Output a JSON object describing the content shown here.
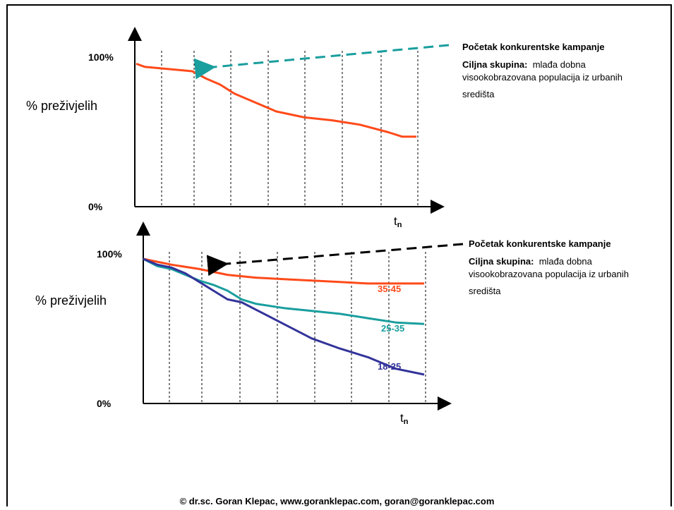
{
  "chart_data": [
    {
      "type": "line",
      "ylabel": "% preživjelih",
      "y_ticks": [
        "100%",
        "0%"
      ],
      "x_end_label": {
        "base": "t",
        "sub": "n"
      },
      "ylim": [
        0,
        100
      ],
      "vertical_dashed_lines": 8,
      "series": [
        {
          "color": "#ff4a1a",
          "x": [
            0,
            0.03,
            0.2,
            0.22,
            0.25,
            0.3,
            0.35,
            0.45,
            0.5,
            0.6,
            0.7,
            0.8,
            0.9,
            0.95,
            1.0
          ],
          "values": [
            96,
            94,
            91,
            89,
            86,
            82,
            76,
            68,
            64,
            60,
            58,
            55,
            50,
            47,
            47
          ]
        }
      ],
      "annotation": {
        "title": "Početak konkurentske kampanje",
        "target_label": "Ciljna skupina:",
        "target_text_line1": "mlađa dobna",
        "target_text_line2": "visookobrazovana populacija iz urbanih",
        "target_text_line3": "središta",
        "arrow_color": "#1a9e9e"
      }
    },
    {
      "type": "line",
      "ylabel": "% preživjelih",
      "y_ticks": [
        "100%",
        "0%"
      ],
      "x_end_label": {
        "base": "t",
        "sub": "n"
      },
      "ylim": [
        0,
        100
      ],
      "vertical_dashed_lines": 8,
      "series": [
        {
          "name": "35-45",
          "color": "#ff4a1a",
          "x": [
            0,
            0.05,
            0.1,
            0.2,
            0.3,
            0.4,
            0.5,
            0.6,
            0.7,
            0.8,
            0.9,
            1.0
          ],
          "values": [
            100,
            98,
            96,
            93,
            89,
            87,
            86,
            85,
            84,
            83,
            83,
            83
          ]
        },
        {
          "name": "25-35",
          "color": "#1a9e9e",
          "x": [
            0,
            0.05,
            0.1,
            0.15,
            0.2,
            0.25,
            0.3,
            0.35,
            0.4,
            0.5,
            0.6,
            0.7,
            0.8,
            0.9,
            1.0
          ],
          "values": [
            100,
            95,
            93,
            89,
            85,
            82,
            78,
            72,
            69,
            66,
            64,
            62,
            59,
            56,
            55
          ]
        },
        {
          "name": "18-25",
          "color": "#33339a",
          "x": [
            0,
            0.05,
            0.1,
            0.15,
            0.2,
            0.25,
            0.3,
            0.35,
            0.4,
            0.5,
            0.6,
            0.7,
            0.8,
            0.85,
            0.9,
            0.95,
            1.0
          ],
          "values": [
            100,
            96,
            94,
            90,
            84,
            78,
            72,
            70,
            65,
            55,
            45,
            38,
            32,
            28,
            24,
            22,
            20
          ]
        }
      ],
      "annotation": {
        "title": "Početak konkurentske kampanje",
        "target_label": "Ciljna skupina:",
        "target_text_line1": "mlađa dobna",
        "target_text_line2": "visookobrazovana populacija iz urbanih",
        "target_text_line3": "središta",
        "arrow_color": "#000000"
      }
    }
  ],
  "footer": "© dr.sc. Goran Klepac, www.goranklepac.com, goran@goranklepac.com"
}
